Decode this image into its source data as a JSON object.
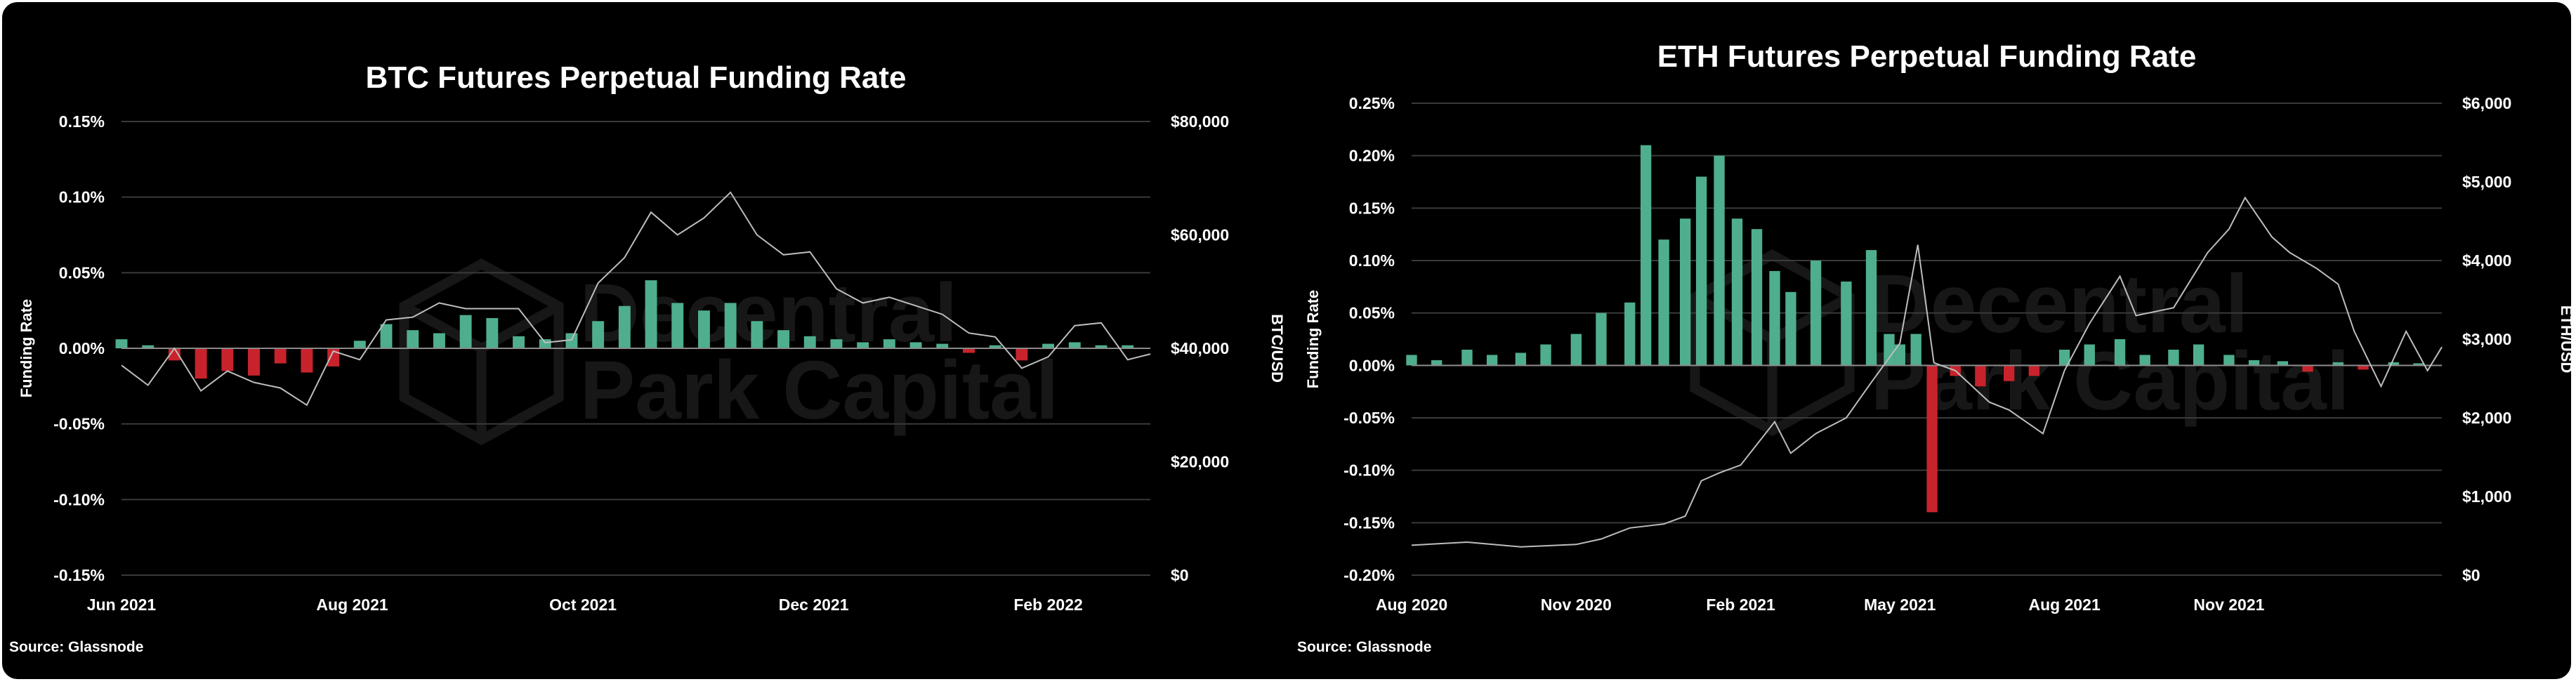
{
  "chart_data": [
    {
      "type": "bar",
      "title": "BTC Futures Perpetual Funding Rate",
      "ylabel": "Funding Rate",
      "y2label": "BTC/USD",
      "ylim": [
        -0.15,
        0.15
      ],
      "y2lim": [
        0,
        80000
      ],
      "yticks": [
        "0.15%",
        "0.10%",
        "0.05%",
        "0.00%",
        "-0.05%",
        "-0.10%",
        "-0.15%"
      ],
      "y2ticks": [
        "$80,000",
        "$60,000",
        "$40,000",
        "$20,000",
        "$0"
      ],
      "xrange": [
        "2021-06-01",
        "2022-02-28"
      ],
      "xticks": [
        {
          "date": "2021-06-01",
          "label": "Jun 2021"
        },
        {
          "date": "2021-08-01",
          "label": "Aug 2021"
        },
        {
          "date": "2021-10-01",
          "label": "Oct 2021"
        },
        {
          "date": "2021-12-01",
          "label": "Dec 2021"
        },
        {
          "date": "2022-02-01",
          "label": "Feb 2022"
        }
      ],
      "grid": true,
      "colors": {
        "positive": "#4fae8e",
        "negative": "#c8232c",
        "price": "#bdbdbd"
      },
      "series": [
        {
          "name": "Funding Rate",
          "points": [
            [
              "2021-06-01",
              0.006
            ],
            [
              "2021-06-08",
              0.002
            ],
            [
              "2021-06-15",
              -0.008
            ],
            [
              "2021-06-22",
              -0.02
            ],
            [
              "2021-06-29",
              -0.015
            ],
            [
              "2021-07-06",
              -0.018
            ],
            [
              "2021-07-13",
              -0.01
            ],
            [
              "2021-07-20",
              -0.016
            ],
            [
              "2021-07-27",
              -0.012
            ],
            [
              "2021-08-03",
              0.005
            ],
            [
              "2021-08-10",
              0.016
            ],
            [
              "2021-08-17",
              0.012
            ],
            [
              "2021-08-24",
              0.01
            ],
            [
              "2021-08-31",
              0.022
            ],
            [
              "2021-09-07",
              0.02
            ],
            [
              "2021-09-14",
              0.008
            ],
            [
              "2021-09-21",
              0.006
            ],
            [
              "2021-09-28",
              0.01
            ],
            [
              "2021-10-05",
              0.018
            ],
            [
              "2021-10-12",
              0.028
            ],
            [
              "2021-10-19",
              0.045
            ],
            [
              "2021-10-26",
              0.03
            ],
            [
              "2021-11-02",
              0.025
            ],
            [
              "2021-11-09",
              0.03
            ],
            [
              "2021-11-16",
              0.018
            ],
            [
              "2021-11-23",
              0.012
            ],
            [
              "2021-11-30",
              0.008
            ],
            [
              "2021-12-07",
              0.006
            ],
            [
              "2021-12-14",
              0.004
            ],
            [
              "2021-12-21",
              0.006
            ],
            [
              "2021-12-28",
              0.004
            ],
            [
              "2022-01-04",
              0.003
            ],
            [
              "2022-01-11",
              -0.003
            ],
            [
              "2022-01-18",
              0.002
            ],
            [
              "2022-01-25",
              -0.008
            ],
            [
              "2022-02-01",
              0.003
            ],
            [
              "2022-02-08",
              0.004
            ],
            [
              "2022-02-15",
              0.002
            ],
            [
              "2022-02-22",
              0.002
            ]
          ]
        },
        {
          "name": "BTC/USD",
          "points": [
            [
              "2021-06-01",
              37000
            ],
            [
              "2021-06-08",
              33500
            ],
            [
              "2021-06-15",
              40000
            ],
            [
              "2021-06-22",
              32500
            ],
            [
              "2021-06-29",
              36000
            ],
            [
              "2021-07-06",
              34000
            ],
            [
              "2021-07-13",
              33000
            ],
            [
              "2021-07-20",
              30000
            ],
            [
              "2021-07-27",
              39500
            ],
            [
              "2021-08-03",
              38000
            ],
            [
              "2021-08-10",
              45000
            ],
            [
              "2021-08-17",
              45500
            ],
            [
              "2021-08-24",
              48000
            ],
            [
              "2021-08-31",
              47000
            ],
            [
              "2021-09-07",
              47000
            ],
            [
              "2021-09-14",
              47000
            ],
            [
              "2021-09-21",
              41000
            ],
            [
              "2021-09-28",
              41500
            ],
            [
              "2021-10-05",
              51500
            ],
            [
              "2021-10-12",
              56000
            ],
            [
              "2021-10-19",
              64000
            ],
            [
              "2021-10-26",
              60000
            ],
            [
              "2021-11-02",
              63000
            ],
            [
              "2021-11-09",
              67500
            ],
            [
              "2021-11-16",
              60000
            ],
            [
              "2021-11-23",
              56500
            ],
            [
              "2021-11-30",
              57000
            ],
            [
              "2021-12-07",
              50500
            ],
            [
              "2021-12-14",
              48000
            ],
            [
              "2021-12-21",
              49000
            ],
            [
              "2021-12-28",
              47500
            ],
            [
              "2022-01-04",
              46000
            ],
            [
              "2022-01-11",
              42700
            ],
            [
              "2022-01-18",
              42000
            ],
            [
              "2022-01-25",
              36500
            ],
            [
              "2022-02-01",
              38500
            ],
            [
              "2022-02-08",
              44000
            ],
            [
              "2022-02-15",
              44500
            ],
            [
              "2022-02-22",
              38000
            ],
            [
              "2022-02-28",
              39000
            ]
          ]
        }
      ],
      "source": "Source: Glassnode",
      "watermark": [
        "Decentral",
        "Park Capital"
      ]
    },
    {
      "type": "bar",
      "title": "ETH Futures Perpetual Funding Rate",
      "ylabel": "Funding Rate",
      "y2label": "ETH/USD",
      "ylim": [
        -0.2,
        0.25
      ],
      "y2lim": [
        0,
        6000
      ],
      "yticks": [
        "0.25%",
        "0.20%",
        "0.15%",
        "0.10%",
        "0.05%",
        "0.00%",
        "-0.05%",
        "-0.10%",
        "-0.15%",
        "-0.20%"
      ],
      "y2ticks": [
        "$6,000",
        "$5,000",
        "$4,000",
        "$3,000",
        "$2,000",
        "$1,000",
        "$0"
      ],
      "xrange": [
        "2020-08-01",
        "2022-02-28"
      ],
      "xticks": [
        {
          "date": "2020-08-01",
          "label": "Aug 2020"
        },
        {
          "date": "2020-11-01",
          "label": "Nov 2020"
        },
        {
          "date": "2021-02-01",
          "label": "Feb 2021"
        },
        {
          "date": "2021-05-01",
          "label": "May 2021"
        },
        {
          "date": "2021-08-01",
          "label": "Aug 2021"
        },
        {
          "date": "2021-11-01",
          "label": "Nov 2021"
        }
      ],
      "grid": true,
      "colors": {
        "positive": "#4fae8e",
        "negative": "#c8232c",
        "price": "#bdbdbd"
      },
      "series": [
        {
          "name": "Funding Rate",
          "points": [
            [
              "2020-08-01",
              0.01
            ],
            [
              "2020-08-15",
              0.005
            ],
            [
              "2020-09-01",
              0.015
            ],
            [
              "2020-09-15",
              0.01
            ],
            [
              "2020-10-01",
              0.012
            ],
            [
              "2020-10-15",
              0.02
            ],
            [
              "2020-11-01",
              0.03
            ],
            [
              "2020-11-15",
              0.05
            ],
            [
              "2020-12-01",
              0.06
            ],
            [
              "2020-12-10",
              0.21
            ],
            [
              "2020-12-20",
              0.12
            ],
            [
              "2021-01-01",
              0.14
            ],
            [
              "2021-01-10",
              0.18
            ],
            [
              "2021-01-20",
              0.2
            ],
            [
              "2021-01-30",
              0.14
            ],
            [
              "2021-02-10",
              0.13
            ],
            [
              "2021-02-20",
              0.09
            ],
            [
              "2021-03-01",
              0.07
            ],
            [
              "2021-03-15",
              0.1
            ],
            [
              "2021-04-01",
              0.08
            ],
            [
              "2021-04-15",
              0.11
            ],
            [
              "2021-04-25",
              0.03
            ],
            [
              "2021-05-01",
              0.02
            ],
            [
              "2021-05-10",
              0.03
            ],
            [
              "2021-05-19",
              -0.14
            ],
            [
              "2021-06-01",
              -0.01
            ],
            [
              "2021-06-15",
              -0.02
            ],
            [
              "2021-07-01",
              -0.015
            ],
            [
              "2021-07-15",
              -0.01
            ],
            [
              "2021-08-01",
              0.015
            ],
            [
              "2021-08-15",
              0.02
            ],
            [
              "2021-09-01",
              0.025
            ],
            [
              "2021-09-15",
              0.01
            ],
            [
              "2021-10-01",
              0.015
            ],
            [
              "2021-10-15",
              0.02
            ],
            [
              "2021-11-01",
              0.01
            ],
            [
              "2021-11-15",
              0.005
            ],
            [
              "2021-12-01",
              0.004
            ],
            [
              "2021-12-15",
              -0.006
            ],
            [
              "2022-01-01",
              0.003
            ],
            [
              "2022-01-15",
              -0.004
            ],
            [
              "2022-02-01",
              0.003
            ],
            [
              "2022-02-15",
              0.002
            ]
          ]
        },
        {
          "name": "ETH/USD",
          "points": [
            [
              "2020-08-01",
              380
            ],
            [
              "2020-09-01",
              420
            ],
            [
              "2020-10-01",
              360
            ],
            [
              "2020-11-01",
              390
            ],
            [
              "2020-11-15",
              460
            ],
            [
              "2020-12-01",
              600
            ],
            [
              "2020-12-20",
              650
            ],
            [
              "2021-01-01",
              750
            ],
            [
              "2021-01-10",
              1200
            ],
            [
              "2021-01-20",
              1300
            ],
            [
              "2021-02-01",
              1400
            ],
            [
              "2021-02-20",
              1950
            ],
            [
              "2021-03-01",
              1550
            ],
            [
              "2021-03-15",
              1800
            ],
            [
              "2021-04-01",
              2000
            ],
            [
              "2021-04-15",
              2450
            ],
            [
              "2021-05-01",
              2950
            ],
            [
              "2021-05-11",
              4200
            ],
            [
              "2021-05-20",
              2700
            ],
            [
              "2021-06-01",
              2600
            ],
            [
              "2021-06-20",
              2200
            ],
            [
              "2021-07-01",
              2100
            ],
            [
              "2021-07-20",
              1800
            ],
            [
              "2021-08-01",
              2600
            ],
            [
              "2021-08-15",
              3200
            ],
            [
              "2021-09-01",
              3800
            ],
            [
              "2021-09-10",
              3300
            ],
            [
              "2021-10-01",
              3400
            ],
            [
              "2021-10-20",
              4100
            ],
            [
              "2021-11-01",
              4400
            ],
            [
              "2021-11-10",
              4800
            ],
            [
              "2021-11-25",
              4300
            ],
            [
              "2021-12-05",
              4100
            ],
            [
              "2021-12-20",
              3900
            ],
            [
              "2022-01-01",
              3700
            ],
            [
              "2022-01-10",
              3100
            ],
            [
              "2022-01-25",
              2400
            ],
            [
              "2022-02-08",
              3100
            ],
            [
              "2022-02-20",
              2600
            ],
            [
              "2022-02-28",
              2900
            ]
          ]
        }
      ],
      "source": "Source: Glassnode",
      "watermark": [
        "Decentral",
        "Park Capital"
      ]
    }
  ]
}
